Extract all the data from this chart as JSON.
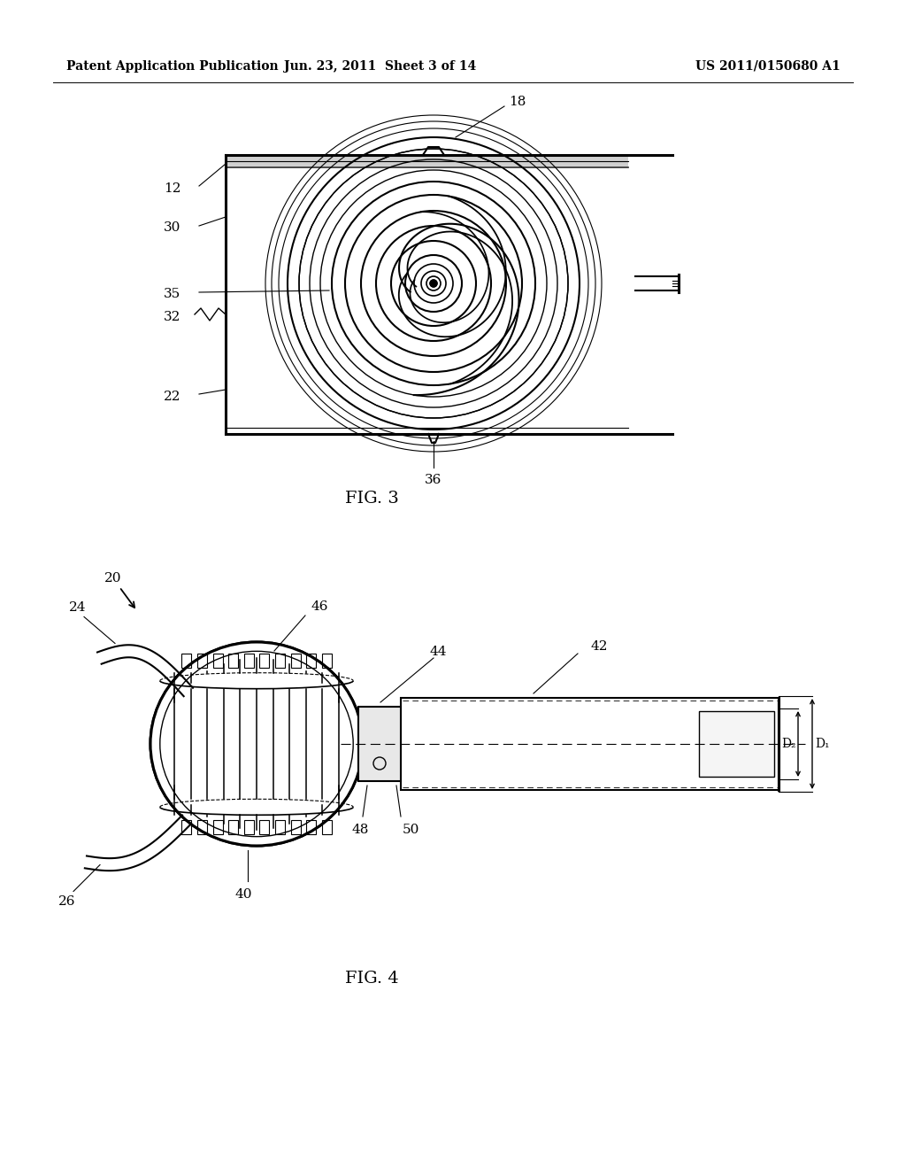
{
  "bg_color": "#ffffff",
  "header_left": "Patent Application Publication",
  "header_mid": "Jun. 23, 2011  Sheet 3 of 14",
  "header_right": "US 2011/0150680 A1",
  "fig3_label": "FIG. 3",
  "fig4_label": "FIG. 4"
}
